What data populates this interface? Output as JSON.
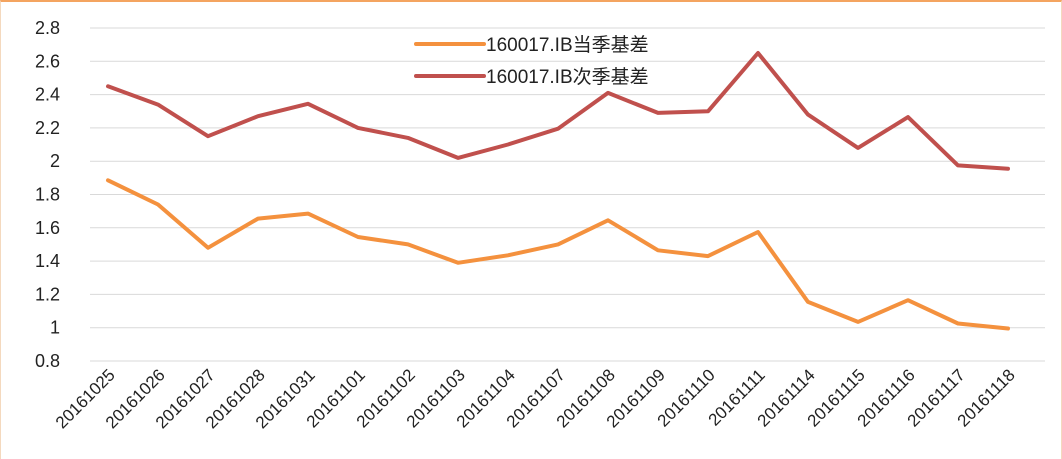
{
  "chart_data": {
    "type": "line",
    "categories": [
      "20161025",
      "20161026",
      "20161027",
      "20161028",
      "20161031",
      "20161101",
      "20161102",
      "20161103",
      "20161104",
      "20161107",
      "20161108",
      "20161109",
      "20161110",
      "20161111",
      "20161114",
      "20161115",
      "20161116",
      "20161117",
      "20161118"
    ],
    "series": [
      {
        "name": "160017.IB当季基差",
        "color": "#F4913E",
        "values": [
          1.885,
          1.74,
          1.48,
          1.655,
          1.685,
          1.545,
          1.5,
          1.39,
          1.435,
          1.5,
          1.645,
          1.465,
          1.43,
          1.575,
          1.155,
          1.035,
          1.165,
          1.025,
          0.995
        ]
      },
      {
        "name": "160017.IB次季基差",
        "color": "#C0504D",
        "values": [
          2.45,
          2.34,
          2.15,
          2.27,
          2.345,
          2.2,
          2.14,
          2.02,
          2.1,
          2.195,
          2.41,
          2.29,
          2.3,
          2.65,
          2.28,
          2.08,
          2.265,
          1.975,
          1.955
        ]
      }
    ],
    "yticks": [
      "0.8",
      "1",
      "1.2",
      "1.4",
      "1.6",
      "1.8",
      "2",
      "2.2",
      "2.4",
      "2.6",
      "2.8"
    ],
    "ylim": [
      0.8,
      2.8
    ],
    "grid": true,
    "legend": "top-center",
    "title": "",
    "xlabel": "",
    "ylabel": ""
  }
}
